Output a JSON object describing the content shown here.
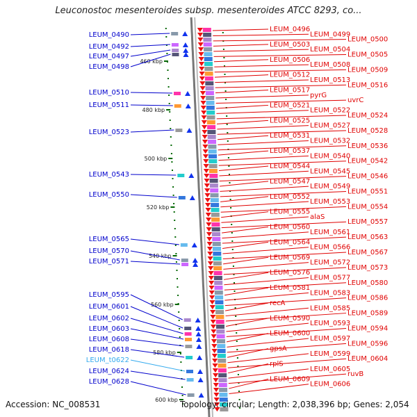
{
  "title": "Leuconostoc mesenteroides subsp. mesenteroides ATCC 8293, co...",
  "footer": {
    "accession": "Accession: NC_008531",
    "stats": "Topology: circular; Length: 2,038,396 bp; Genes: 2,054"
  },
  "colors": {
    "left_label": "#0000cc",
    "rna_label": "#33aaee",
    "right_label": "#e00000",
    "backbone": "#888888",
    "tick": "#006600"
  },
  "kbp_ticks": [
    "460 kbp",
    "480 kbp",
    "500 kbp",
    "520 kbp",
    "540 kbp",
    "560 kbp",
    "580 kbp",
    "600 kbp"
  ],
  "left_genes": [
    "LEUM_0490",
    "LEUM_0492",
    "LEUM_0497",
    "LEUM_0498",
    "LEUM_0510",
    "LEUM_0511",
    "LEUM_0523",
    "LEUM_0543",
    "LEUM_0550",
    "LEUM_0565",
    "LEUM_0570",
    "LEUM_0571",
    "LEUM_0595",
    "LEUM_0601",
    "LEUM_0602",
    "LEUM_0603",
    "LEUM_0608",
    "LEUM_0618",
    "LEUM_t0622",
    "LEUM_0624",
    "LEUM_0628"
  ],
  "right_genes": [
    "LEUM_0496",
    "LEUM_0499",
    "LEUM_0500",
    "LEUM_0503",
    "LEUM_0504",
    "LEUM_0505",
    "LEUM_0506",
    "LEUM_0508",
    "LEUM_0509",
    "LEUM_0512",
    "LEUM_0513",
    "LEUM_0516",
    "LEUM_0517",
    "pyrG",
    "uvrC",
    "LEUM_0521",
    "LEUM_0522",
    "LEUM_0524",
    "LEUM_0525",
    "LEUM_0527",
    "LEUM_0528",
    "LEUM_0531",
    "LEUM_0532",
    "LEUM_0536",
    "LEUM_0537",
    "LEUM_0540",
    "LEUM_0542",
    "LEUM_0544",
    "LEUM_0545",
    "LEUM_0546",
    "LEUM_0547",
    "LEUM_0549",
    "LEUM_0551",
    "LEUM_0552",
    "LEUM_0553",
    "LEUM_0554",
    "LEUM_0555",
    "alaS",
    "LEUM_0557",
    "LEUM_0560",
    "LEUM_0561",
    "LEUM_0563",
    "LEUM_0564",
    "LEUM_0566",
    "LEUM_0567",
    "LEUM_0569",
    "LEUM_0572",
    "LEUM_0573",
    "LEUM_0576",
    "LEUM_0577",
    "LEUM_0580",
    "LEUM_0581",
    "LEUM_0583",
    "LEUM_0586",
    "recA",
    "LEUM_0585",
    "LEUM_0589",
    "LEUM_0590",
    "LEUM_0593",
    "LEUM_0594",
    "LEUM_0600",
    "LEUM_0597",
    "LEUM_0596",
    "gpsA",
    "LEUM_0599",
    "LEUM_0604",
    "rplS",
    "LEUM_0605",
    "ruvB",
    "LEUM_0609",
    "LEUM_0606"
  ]
}
